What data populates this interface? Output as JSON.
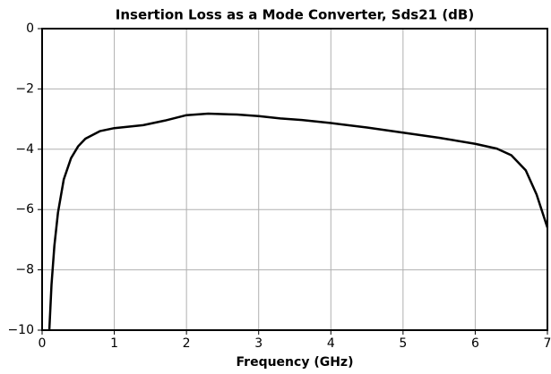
{
  "chart_data": {
    "type": "line",
    "title": "Insertion Loss as a Mode Converter, Sds21 (dB)",
    "xlabel": "Frequency (GHz)",
    "x": [
      0.1,
      0.13,
      0.17,
      0.22,
      0.3,
      0.4,
      0.5,
      0.6,
      0.8,
      1.0,
      1.4,
      1.7,
      2.0,
      2.3,
      2.7,
      3.0,
      3.3,
      3.6,
      4.0,
      4.5,
      5.0,
      5.5,
      6.0,
      6.3,
      6.5,
      6.7,
      6.85,
      7.0
    ],
    "series": [
      {
        "name": "Sds21",
        "color": "#000000",
        "values": [
          -10,
          -8.5,
          -7.2,
          -6.1,
          -5.0,
          -4.3,
          -3.9,
          -3.65,
          -3.4,
          -3.3,
          -3.2,
          -3.05,
          -2.87,
          -2.82,
          -2.85,
          -2.9,
          -2.98,
          -3.03,
          -3.13,
          -3.28,
          -3.45,
          -3.62,
          -3.82,
          -3.98,
          -4.2,
          -4.7,
          -5.5,
          -6.6
        ]
      }
    ],
    "xlim": [
      0,
      7
    ],
    "xticks": [
      0,
      1,
      2,
      3,
      4,
      5,
      6,
      7
    ],
    "ylim": [
      -10,
      0
    ],
    "yticks": [
      {
        "value": -10,
        "label": "−10"
      },
      {
        "value": -8,
        "label": "−8"
      },
      {
        "value": -6,
        "label": "−6"
      },
      {
        "value": -4,
        "label": "−4"
      },
      {
        "value": -2,
        "label": "−2"
      },
      0
    ],
    "grid": true
  }
}
